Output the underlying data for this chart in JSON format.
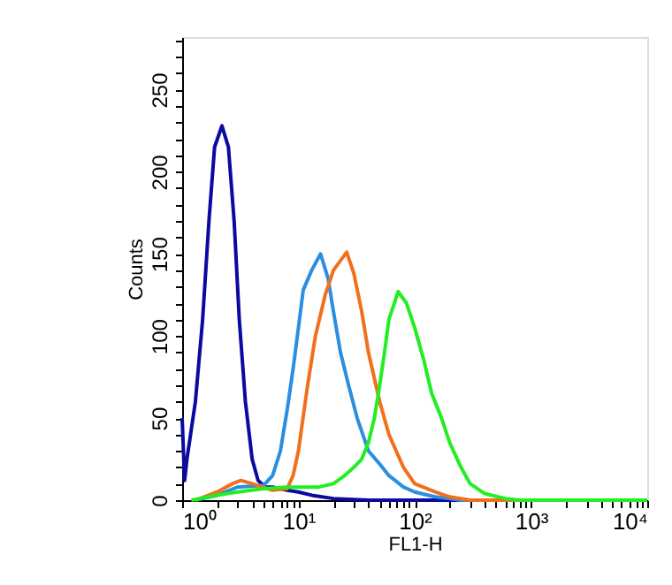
{
  "chart_data": {
    "type": "line",
    "xlabel": "FL1-H",
    "ylabel": "Counts",
    "log": "x",
    "grid": false,
    "legend": false,
    "marker": "none",
    "line_style": "solid",
    "xlim": [
      1,
      10000
    ],
    "xticks": [
      {
        "value": 1,
        "label": "10⁰"
      },
      {
        "value": 2,
        "label": null
      },
      {
        "value": 3,
        "label": null
      },
      {
        "value": 4,
        "label": null
      },
      {
        "value": 5,
        "label": null
      },
      {
        "value": 6,
        "label": null
      },
      {
        "value": 7,
        "label": null
      },
      {
        "value": 8,
        "label": null
      },
      {
        "value": 9,
        "label": null
      },
      {
        "value": 10,
        "label": "10¹"
      },
      {
        "value": 20,
        "label": null
      },
      {
        "value": 30,
        "label": null
      },
      {
        "value": 40,
        "label": null
      },
      {
        "value": 50,
        "label": null
      },
      {
        "value": 60,
        "label": null
      },
      {
        "value": 70,
        "label": null
      },
      {
        "value": 80,
        "label": null
      },
      {
        "value": 90,
        "label": null
      },
      {
        "value": 100,
        "label": "10²"
      },
      {
        "value": 200,
        "label": null
      },
      {
        "value": 300,
        "label": null
      },
      {
        "value": 400,
        "label": null
      },
      {
        "value": 500,
        "label": null
      },
      {
        "value": 600,
        "label": null
      },
      {
        "value": 700,
        "label": null
      },
      {
        "value": 800,
        "label": null
      },
      {
        "value": 900,
        "label": null
      },
      {
        "value": 1000,
        "label": "10³"
      },
      {
        "value": 2000,
        "label": null
      },
      {
        "value": 3000,
        "label": null
      },
      {
        "value": 4000,
        "label": null
      },
      {
        "value": 5000,
        "label": null
      },
      {
        "value": 6000,
        "label": null
      },
      {
        "value": 7000,
        "label": null
      },
      {
        "value": 8000,
        "label": null
      },
      {
        "value": 9000,
        "label": null
      },
      {
        "value": 10000,
        "label": "10⁴"
      }
    ],
    "ylim": [
      0,
      282
    ],
    "yticks": [
      0,
      {
        "value": 10,
        "label": null
      },
      {
        "value": 20,
        "label": null
      },
      {
        "value": 30,
        "label": null
      },
      {
        "value": 40,
        "label": null
      },
      50,
      {
        "value": 60,
        "label": null
      },
      {
        "value": 70,
        "label": null
      },
      {
        "value": 80,
        "label": null
      },
      {
        "value": 90,
        "label": null
      },
      100,
      {
        "value": 110,
        "label": null
      },
      {
        "value": 120,
        "label": null
      },
      {
        "value": 130,
        "label": null
      },
      {
        "value": 140,
        "label": null
      },
      150,
      {
        "value": 160,
        "label": null
      },
      {
        "value": 170,
        "label": null
      },
      {
        "value": 180,
        "label": null
      },
      {
        "value": 190,
        "label": null
      },
      200,
      {
        "value": 210,
        "label": null
      },
      {
        "value": 220,
        "label": null
      },
      {
        "value": 230,
        "label": null
      },
      {
        "value": 240,
        "label": null
      },
      250,
      {
        "value": 260,
        "label": null
      },
      {
        "value": 270,
        "label": null
      },
      {
        "value": 280,
        "label": null
      }
    ],
    "series": [
      {
        "color": "#0a0aa0",
        "x": [
          1,
          1.05,
          1.1,
          1.3,
          1.5,
          1.7,
          1.9,
          2.2,
          2.5,
          2.8,
          3.1,
          3.5,
          4,
          4.5,
          5.2,
          6,
          8,
          10,
          13,
          20,
          40,
          10000
        ],
        "values": [
          50,
          12,
          25,
          60,
          110,
          170,
          215,
          228,
          215,
          170,
          110,
          60,
          25,
          12,
          8,
          8,
          6,
          5,
          3,
          1,
          0,
          0
        ]
      },
      {
        "color": "#2b8ee0",
        "x": [
          1.3,
          2,
          3,
          5,
          6,
          7,
          8,
          9,
          10,
          11,
          13,
          15.5,
          18,
          20,
          23,
          27,
          32,
          40,
          50,
          60,
          80,
          100,
          150,
          250,
          10000
        ],
        "values": [
          0,
          3,
          8,
          9,
          15,
          30,
          55,
          80,
          105,
          128,
          140,
          150,
          135,
          115,
          90,
          70,
          50,
          30,
          22,
          15,
          8,
          5,
          2,
          0,
          0
        ]
      },
      {
        "color": "#f0701e",
        "x": [
          1.3,
          2,
          2.7,
          3.2,
          4,
          6,
          8,
          9,
          10,
          12,
          14,
          17,
          20,
          26,
          30,
          35,
          40,
          50,
          60,
          80,
          100,
          150,
          200,
          300,
          10000
        ],
        "values": [
          0,
          5,
          10,
          12,
          10,
          6,
          7,
          15,
          30,
          70,
          100,
          125,
          140,
          151,
          138,
          115,
          90,
          60,
          40,
          20,
          10,
          5,
          2,
          0,
          0
        ]
      },
      {
        "color": "#22ee22",
        "x": [
          1.2,
          2,
          3,
          5,
          8,
          10,
          15,
          20,
          25,
          30,
          35,
          40,
          45,
          50,
          55,
          60,
          72,
          85,
          100,
          120,
          140,
          170,
          200,
          250,
          300,
          400,
          600,
          800,
          10000
        ],
        "values": [
          0,
          3,
          5,
          7,
          8,
          8,
          8,
          10,
          15,
          20,
          25,
          35,
          50,
          70,
          90,
          110,
          127,
          120,
          105,
          85,
          65,
          50,
          35,
          20,
          10,
          4,
          1,
          0,
          0
        ]
      }
    ]
  }
}
